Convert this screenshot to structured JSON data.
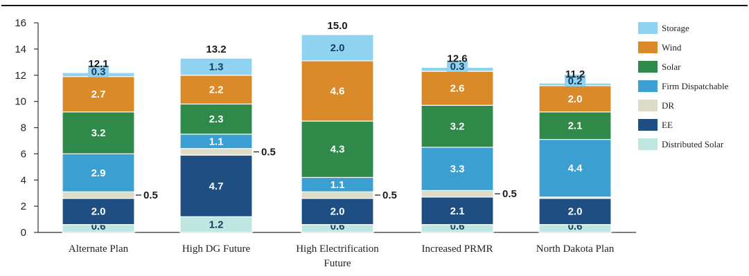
{
  "chart_data": {
    "type": "bar",
    "stacked": true,
    "categories": [
      "Alternate Plan",
      "High DG Future",
      "High Electrification Future",
      "Increased PRMR",
      "North Dakota Plan"
    ],
    "category_lines": [
      [
        "Alternate Plan"
      ],
      [
        "High DG Future"
      ],
      [
        "High Electrification",
        "Future"
      ],
      [
        "Increased PRMR"
      ],
      [
        "North Dakota Plan"
      ]
    ],
    "series": [
      {
        "name": "Distributed Solar",
        "color": "#bfe6e0",
        "values": [
          0.6,
          1.2,
          0.6,
          0.6,
          0.6
        ],
        "labels": [
          "0.6",
          "1.2",
          "0.6",
          "0.6",
          "0.6"
        ]
      },
      {
        "name": "EE",
        "color": "#1f4f82",
        "values": [
          2.0,
          4.7,
          2.0,
          2.1,
          2.0
        ],
        "labels": [
          "2.0",
          "4.7",
          "2.0",
          "2.1",
          "2.0"
        ]
      },
      {
        "name": "DR",
        "color": "#dcdcc8",
        "values": [
          0.5,
          0.5,
          0.5,
          0.5,
          0.1
        ],
        "labels": [
          "0.5",
          "0.5",
          "0.5",
          "0.5",
          ""
        ]
      },
      {
        "name": "Firm Dispatchable",
        "color": "#3c9fd2",
        "values": [
          2.9,
          1.1,
          1.1,
          3.3,
          4.4
        ],
        "labels": [
          "2.9",
          "1.1",
          "1.1",
          "3.3",
          "4.4"
        ]
      },
      {
        "name": "Solar",
        "color": "#2f8a4a",
        "values": [
          3.2,
          2.3,
          4.3,
          3.2,
          2.1
        ],
        "labels": [
          "3.2",
          "2.3",
          "4.3",
          "3.2",
          "2.1"
        ]
      },
      {
        "name": "Wind",
        "color": "#db8a2a",
        "values": [
          2.7,
          2.2,
          4.6,
          2.6,
          2.0
        ],
        "labels": [
          "2.7",
          "2.2",
          "4.6",
          "2.6",
          "2.0"
        ]
      },
      {
        "name": "Storage",
        "color": "#8fd3f0",
        "values": [
          0.3,
          1.3,
          2.0,
          0.3,
          0.2
        ],
        "labels": [
          "0.3",
          "1.3",
          "2.0",
          "0.3",
          "0.2"
        ]
      }
    ],
    "totals": [
      "12.1",
      "13.2",
      "15.0",
      "12.6",
      "11.2"
    ],
    "dr_label": "0.5",
    "legend_order": [
      "Storage",
      "Wind",
      "Solar",
      "Firm Dispatchable",
      "DR",
      "EE",
      "Distributed Solar"
    ],
    "ylim": [
      0,
      16
    ],
    "yticks": [
      "0",
      "2",
      "4",
      "6",
      "8",
      "10",
      "12",
      "14",
      "16"
    ],
    "grid": false,
    "legend_position": "right",
    "title": "",
    "xlabel": "",
    "ylabel": ""
  }
}
